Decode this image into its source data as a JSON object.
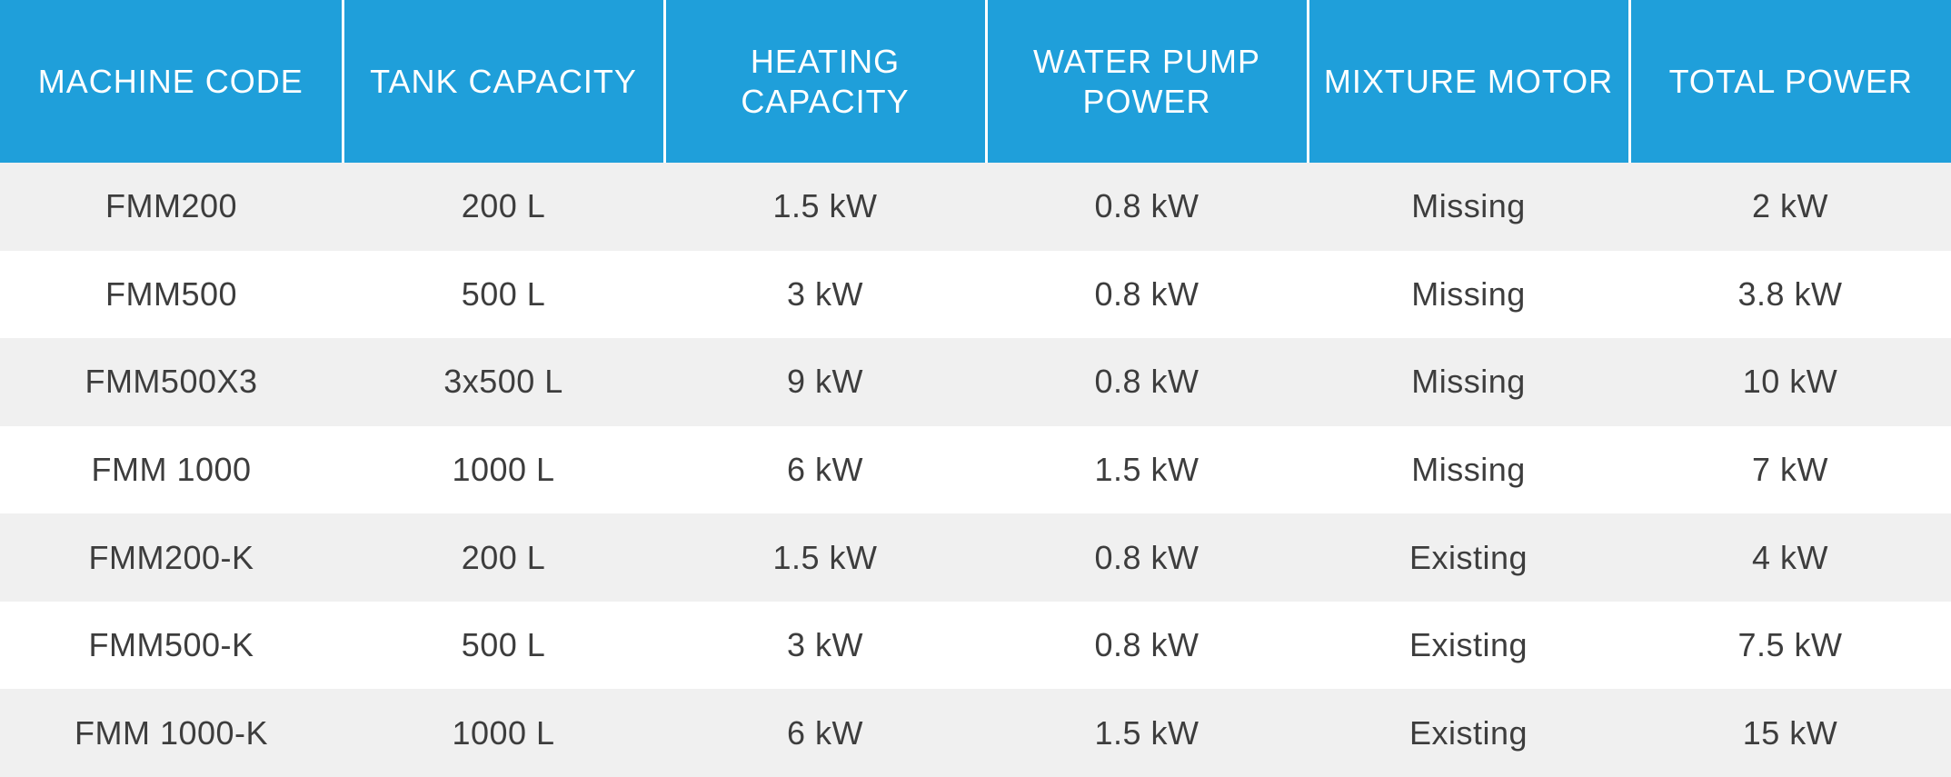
{
  "colors": {
    "header_background": "#1f9fda",
    "header_text": "#ffffff",
    "row_odd": "#f0f0f0",
    "row_even": "#ffffff",
    "cell_text": "#3d3d3d"
  },
  "table": {
    "headers": [
      "MACHINE CODE",
      "TANK CAPACITY",
      "HEATING CAPACITY",
      "WATER PUMP POWER",
      "MIXTURE MOTOR",
      "TOTAL POWER"
    ],
    "rows": [
      [
        "FMM200",
        "200 L",
        "1.5 kW",
        "0.8 kW",
        "Missing",
        "2 kW"
      ],
      [
        "FMM500",
        "500 L",
        "3 kW",
        "0.8 kW",
        "Missing",
        "3.8 kW"
      ],
      [
        "FMM500X3",
        "3x500 L",
        "9 kW",
        "0.8 kW",
        "Missing",
        "10 kW"
      ],
      [
        "FMM 1000",
        "1000 L",
        "6 kW",
        "1.5 kW",
        "Missing",
        "7 kW"
      ],
      [
        "FMM200-K",
        "200 L",
        "1.5 kW",
        "0.8 kW",
        "Existing",
        "4 kW"
      ],
      [
        "FMM500-K",
        "500 L",
        "3 kW",
        "0.8 kW",
        "Existing",
        "7.5 kW"
      ],
      [
        "FMM 1000-K",
        "1000 L",
        "6 kW",
        "1.5 kW",
        "Existing",
        "15 kW"
      ]
    ]
  }
}
